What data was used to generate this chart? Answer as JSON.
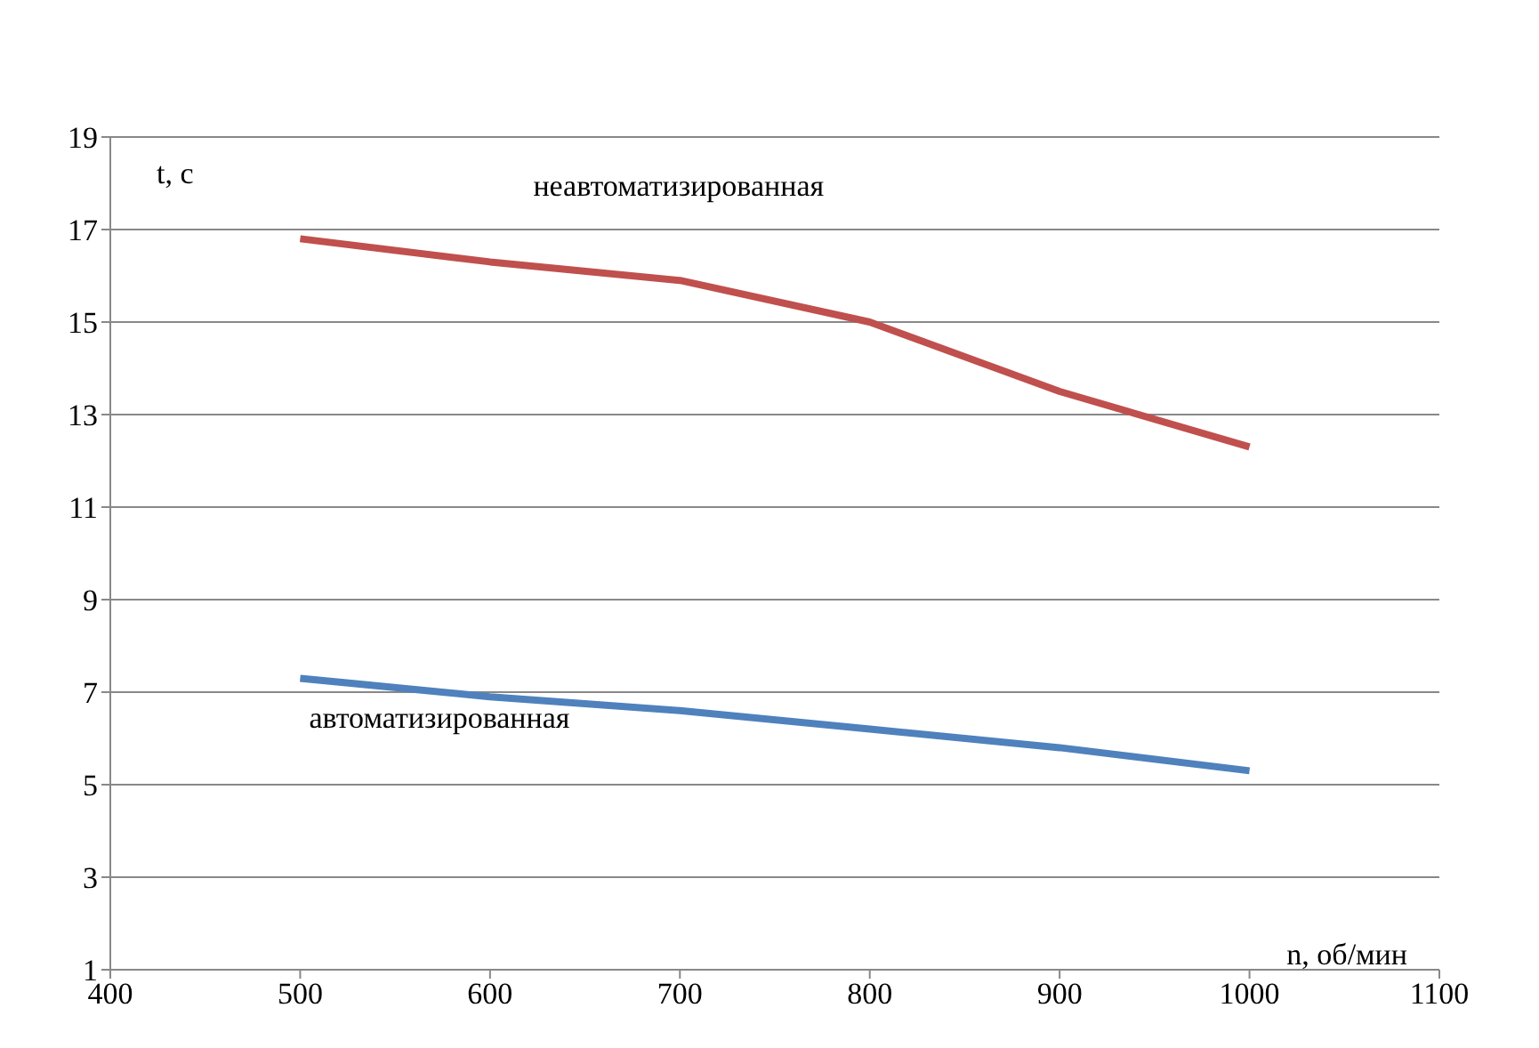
{
  "chart_data": {
    "type": "line",
    "xlabel": "n, об/мин",
    "ylabel": "t, с",
    "x": [
      500,
      600,
      700,
      800,
      900,
      1000
    ],
    "series": [
      {
        "name": "неавтоматизированная",
        "color": "#c0504d",
        "values": [
          16.8,
          16.3,
          15.9,
          15.0,
          13.5,
          12.3
        ]
      },
      {
        "name": "автоматизированная",
        "color": "#4f81bd",
        "values": [
          7.3,
          6.9,
          6.6,
          6.2,
          5.8,
          5.3
        ]
      }
    ],
    "xlim": [
      400,
      1100
    ],
    "xticks": [
      400,
      500,
      600,
      700,
      800,
      900,
      1000,
      1100
    ],
    "ylim": [
      1,
      19
    ],
    "yticks": [
      1,
      3,
      5,
      7,
      9,
      11,
      13,
      15,
      17,
      19
    ],
    "grid": "y",
    "legend": false,
    "marker": "none",
    "line_style": "solid"
  }
}
